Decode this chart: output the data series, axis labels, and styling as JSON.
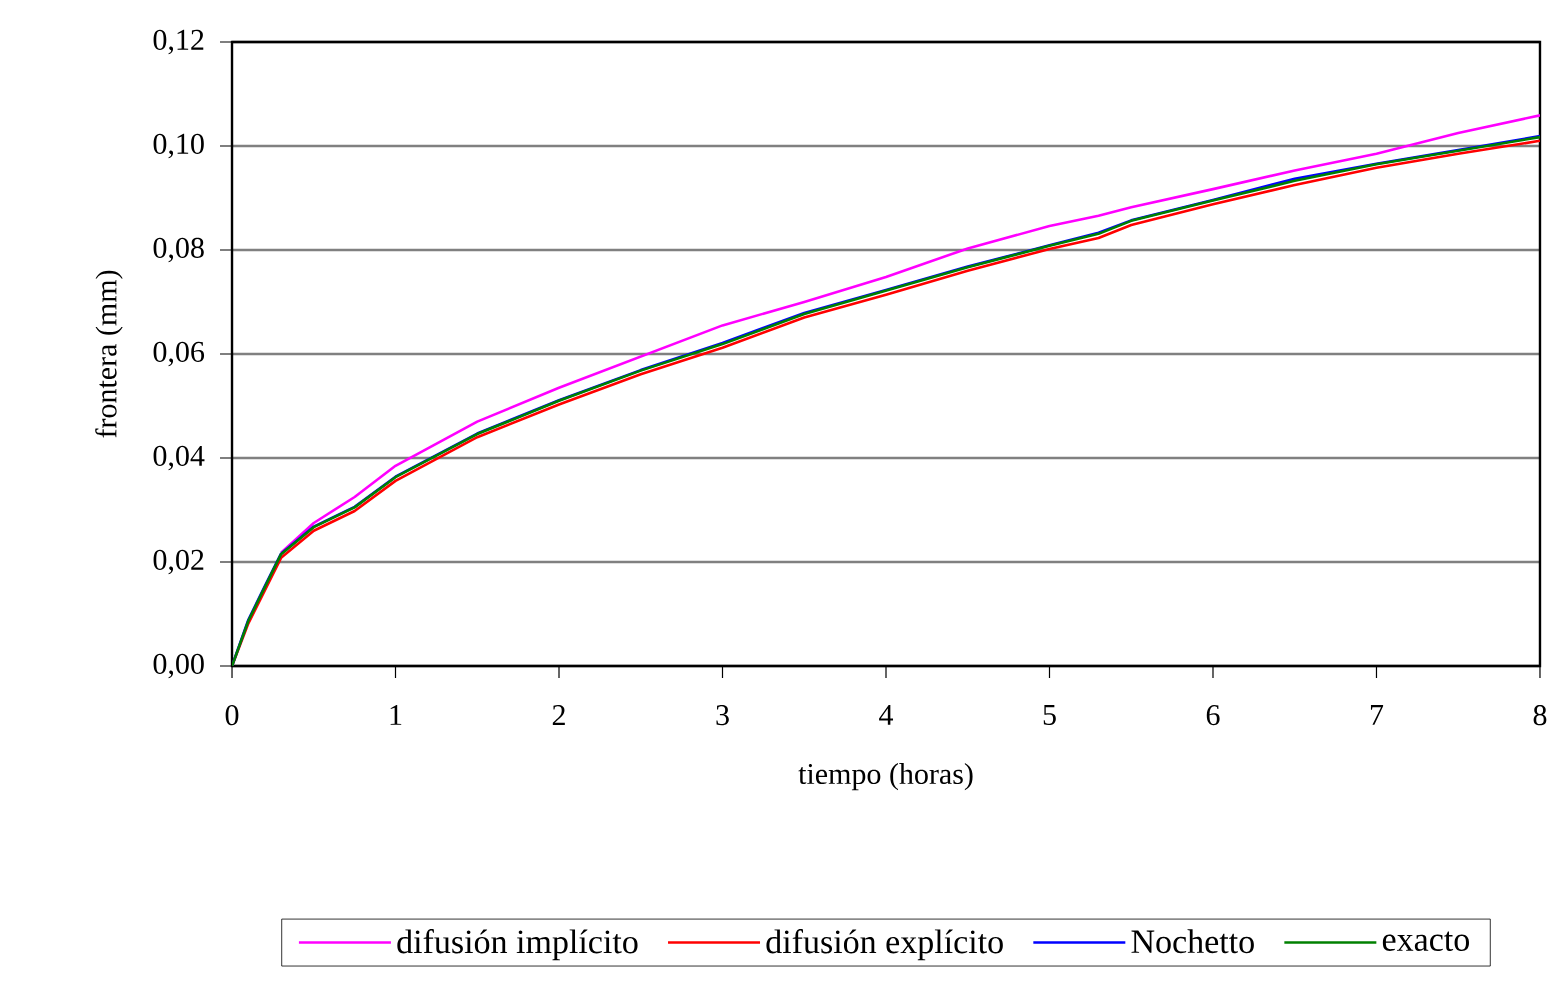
{
  "chart_data": {
    "type": "line",
    "xlabel": "tiempo (horas)",
    "ylabel": "frontera (mm)",
    "xlim": [
      0,
      8
    ],
    "ylim": [
      0,
      0.12
    ],
    "xticks": [
      0,
      1,
      2,
      3,
      4,
      5,
      6,
      7,
      8
    ],
    "yticks": [
      {
        "value": 0,
        "label": "0,00"
      },
      {
        "value": 0.02,
        "label": "0,02"
      },
      {
        "value": 0.04,
        "label": "0,04"
      },
      {
        "value": 0.06,
        "label": "0,06"
      },
      {
        "value": 0.08,
        "label": "0,08"
      },
      {
        "value": 0.1,
        "label": "0,10"
      },
      {
        "value": 0.12,
        "label": "0,12"
      }
    ],
    "grid": "y",
    "legend": "bottom",
    "marker": "none",
    "line_style": "solid",
    "x": [
      0,
      0.1,
      0.2,
      0.3,
      0.5,
      0.75,
      1,
      1.5,
      2,
      2.5,
      3,
      3.5,
      4,
      4.5,
      5,
      5.3,
      5.5,
      6,
      6.5,
      7,
      7.5,
      8
    ],
    "series": [
      {
        "name": "difusión implícito",
        "color": "#ff00ff",
        "values": [
          null,
          null,
          null,
          0.0218,
          0.0275,
          0.0325,
          0.0385,
          0.047,
          0.0535,
          0.0595,
          0.0655,
          0.07,
          0.0748,
          0.0803,
          0.0846,
          0.0866,
          0.0882,
          0.0917,
          0.0953,
          0.0985,
          0.1025,
          0.1059
        ]
      },
      {
        "name": "difusión explícito",
        "color": "#ff0000",
        "values": [
          0,
          0.0082,
          0.0145,
          0.0208,
          0.026,
          0.0298,
          0.0356,
          0.044,
          0.0503,
          0.0561,
          0.0612,
          0.067,
          0.0714,
          0.076,
          0.0802,
          0.0823,
          0.0848,
          0.0888,
          0.0925,
          0.0958,
          0.0985,
          0.101
        ]
      },
      {
        "name": "Nochetto",
        "color": "#0000ff",
        "values": [
          0,
          0.0089,
          0.0153,
          0.0216,
          0.0268,
          0.0306,
          0.0364,
          0.0447,
          0.0511,
          0.0569,
          0.0621,
          0.0679,
          0.0723,
          0.0768,
          0.0809,
          0.0833,
          0.0857,
          0.0896,
          0.0937,
          0.0966,
          0.0992,
          0.1019
        ]
      },
      {
        "name": "exacto",
        "color": "#008000",
        "values": [
          0,
          0.0087,
          0.0151,
          0.0215,
          0.0267,
          0.0305,
          0.0363,
          0.0446,
          0.051,
          0.0568,
          0.0619,
          0.0677,
          0.0722,
          0.0767,
          0.0808,
          0.0831,
          0.0856,
          0.0895,
          0.0933,
          0.0965,
          0.0991,
          0.1017
        ]
      }
    ]
  }
}
